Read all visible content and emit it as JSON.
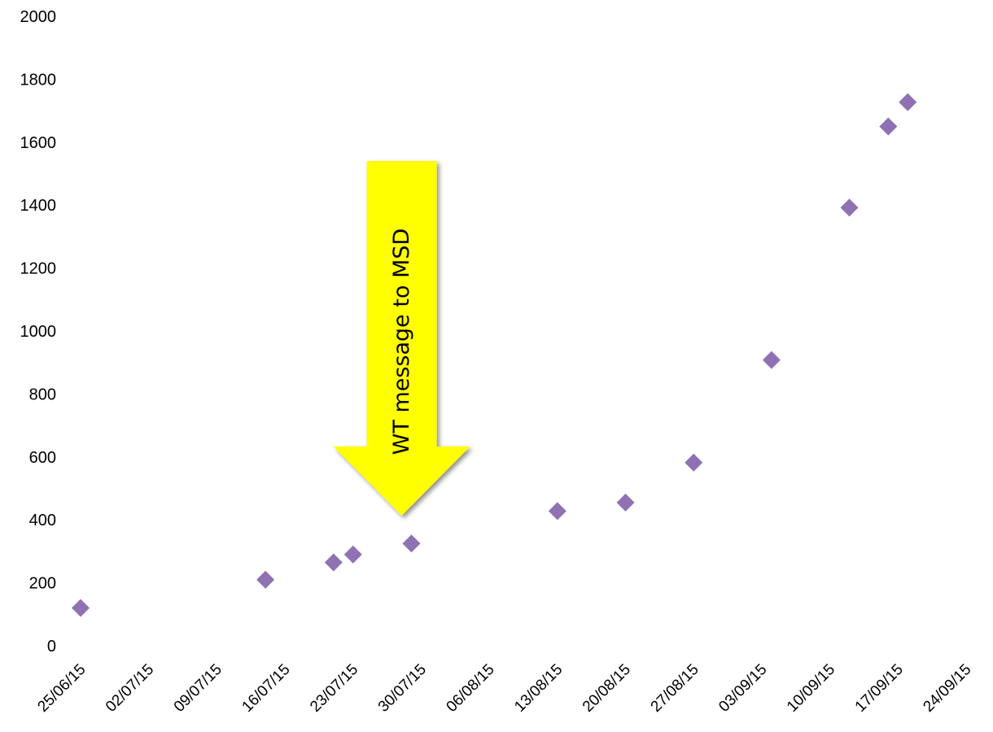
{
  "chart_data": {
    "type": "scatter",
    "title": "",
    "xlabel": "",
    "ylabel": "",
    "x_axis": {
      "scale": "date",
      "min": "2015-06-25",
      "max": "2015-09-24",
      "tick_labels": [
        "25/06/15",
        "02/07/15",
        "09/07/15",
        "16/07/15",
        "23/07/15",
        "30/07/15",
        "06/08/15",
        "13/08/15",
        "20/08/15",
        "27/08/15",
        "03/09/15",
        "10/09/15",
        "17/09/15",
        "24/09/15"
      ]
    },
    "y_axis": {
      "min": 0,
      "max": 2000,
      "tick_labels": [
        "0",
        "200",
        "400",
        "600",
        "800",
        "1000",
        "1200",
        "1400",
        "1600",
        "1800",
        "2000"
      ]
    },
    "grid": false,
    "legend": "none",
    "series": [
      {
        "color": "#8E72B4",
        "marker": "diamond",
        "points": [
          {
            "x": "2015-06-25",
            "y": 120
          },
          {
            "x": "2015-07-14",
            "y": 210
          },
          {
            "x": "2015-07-21",
            "y": 265
          },
          {
            "x": "2015-07-23",
            "y": 290
          },
          {
            "x": "2015-07-29",
            "y": 325
          },
          {
            "x": "2015-08-13",
            "y": 428
          },
          {
            "x": "2015-08-20",
            "y": 455
          },
          {
            "x": "2015-08-27",
            "y": 582
          },
          {
            "x": "2015-09-04",
            "y": 908
          },
          {
            "x": "2015-09-12",
            "y": 1392
          },
          {
            "x": "2015-09-16",
            "y": 1650
          },
          {
            "x": "2015-09-18",
            "y": 1727
          }
        ]
      }
    ],
    "annotations": [
      {
        "text": "WT message to MSD",
        "shape": "down-arrow",
        "x": "2015-07-28",
        "color": "#FFFF00"
      }
    ]
  }
}
